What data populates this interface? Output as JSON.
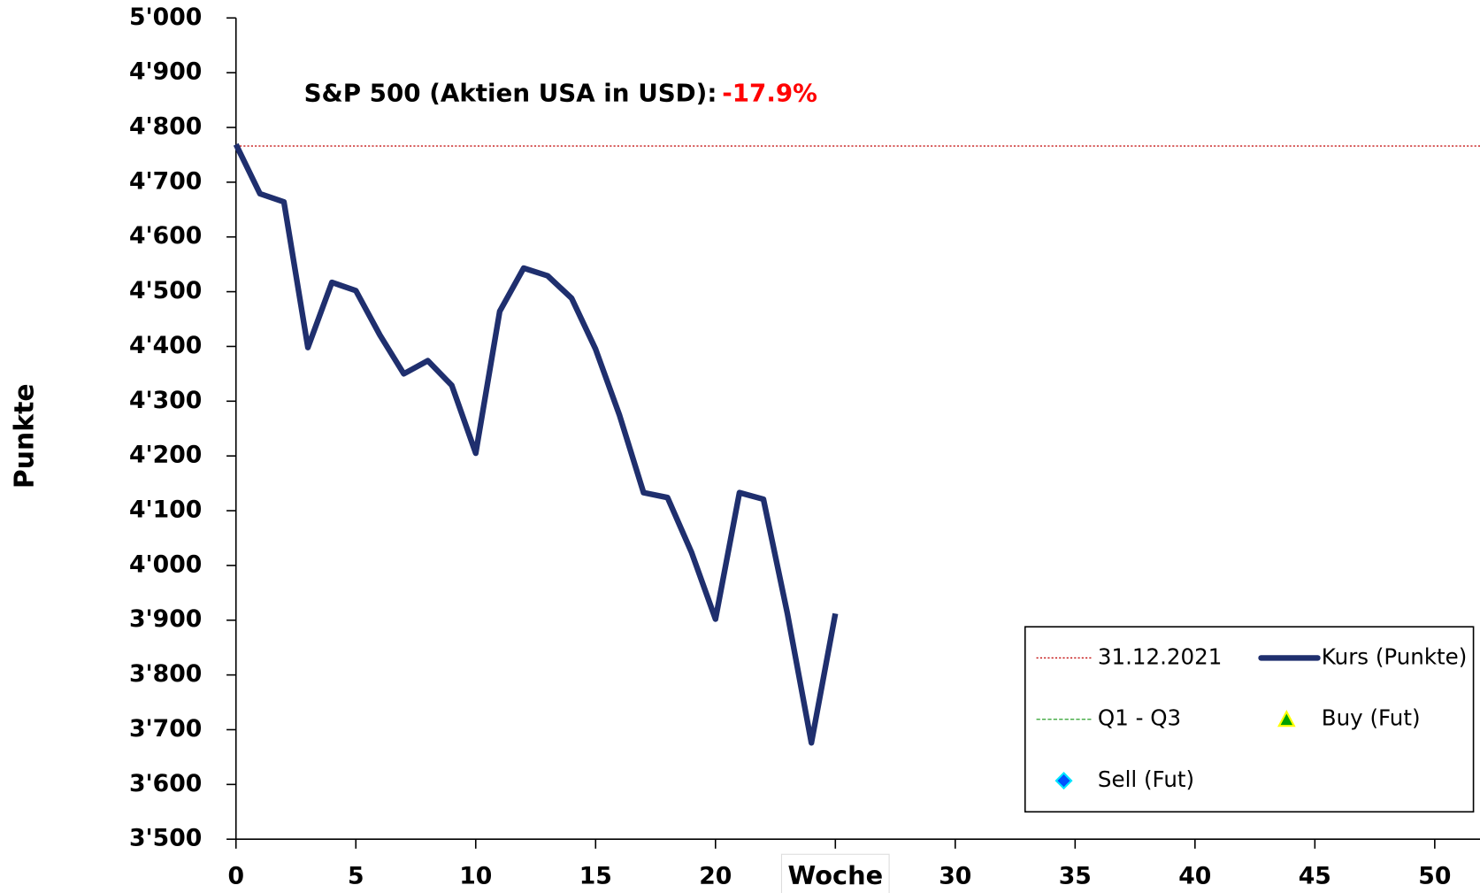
{
  "chart_data": {
    "type": "line",
    "annotation": "S&P 500  (Aktien USA in USD):",
    "annotation_value": "-17.9%",
    "ylabel": "Punkte",
    "x": [
      0,
      1,
      2,
      3,
      4,
      5,
      6,
      7,
      8,
      9,
      10,
      11,
      12,
      13,
      14,
      15,
      16,
      17,
      18,
      19,
      20,
      21,
      22,
      23,
      24,
      25
    ],
    "series": [
      {
        "name": "Kurs (Punkte)",
        "color": "#1f2f6e",
        "values": [
          4769,
          4679,
          4664,
          4398,
          4517,
          4502,
          4421,
          4350,
          4374,
          4329,
          4205,
          4464,
          4543,
          4529,
          4488,
          4395,
          4274,
          4133,
          4124,
          4024,
          3902,
          4133,
          4121,
          3912,
          3676,
          3912
        ]
      }
    ],
    "reference_line": {
      "name": "31.12.2021",
      "value": 4766,
      "color": "#c00000"
    },
    "legend_entries": [
      {
        "name": "Q1 - Q3",
        "color": "#2ca02c",
        "style": "dashed"
      },
      {
        "name": "Buy (Fut)",
        "color": "#00a000",
        "style": "triangle"
      },
      {
        "name": "Sell (Fut)",
        "color": "#0050ff",
        "style": "diamond"
      }
    ],
    "xlim": [
      0,
      52
    ],
    "xticks": [
      0,
      5,
      10,
      15,
      20,
      {
        "value": 25,
        "label": "Woche"
      },
      30,
      35,
      40,
      45,
      50
    ],
    "ylim": [
      3500,
      5000
    ],
    "yticks": [
      {
        "value": 3500,
        "label": "3'500"
      },
      {
        "value": 3600,
        "label": "3'600"
      },
      {
        "value": 3700,
        "label": "3'700"
      },
      {
        "value": 3800,
        "label": "3'800"
      },
      {
        "value": 3900,
        "label": "3'900"
      },
      {
        "value": 4000,
        "label": "4'000"
      },
      {
        "value": 4100,
        "label": "4'100"
      },
      {
        "value": 4200,
        "label": "4'200"
      },
      {
        "value": 4300,
        "label": "4'300"
      },
      {
        "value": 4400,
        "label": "4'400"
      },
      {
        "value": 4500,
        "label": "4'500"
      },
      {
        "value": 4600,
        "label": "4'600"
      },
      {
        "value": 4700,
        "label": "4'700"
      },
      {
        "value": 4800,
        "label": "4'800"
      },
      {
        "value": 4900,
        "label": "4'900"
      },
      {
        "value": 5000,
        "label": "5'000"
      }
    ],
    "legend_position": "lower right"
  }
}
